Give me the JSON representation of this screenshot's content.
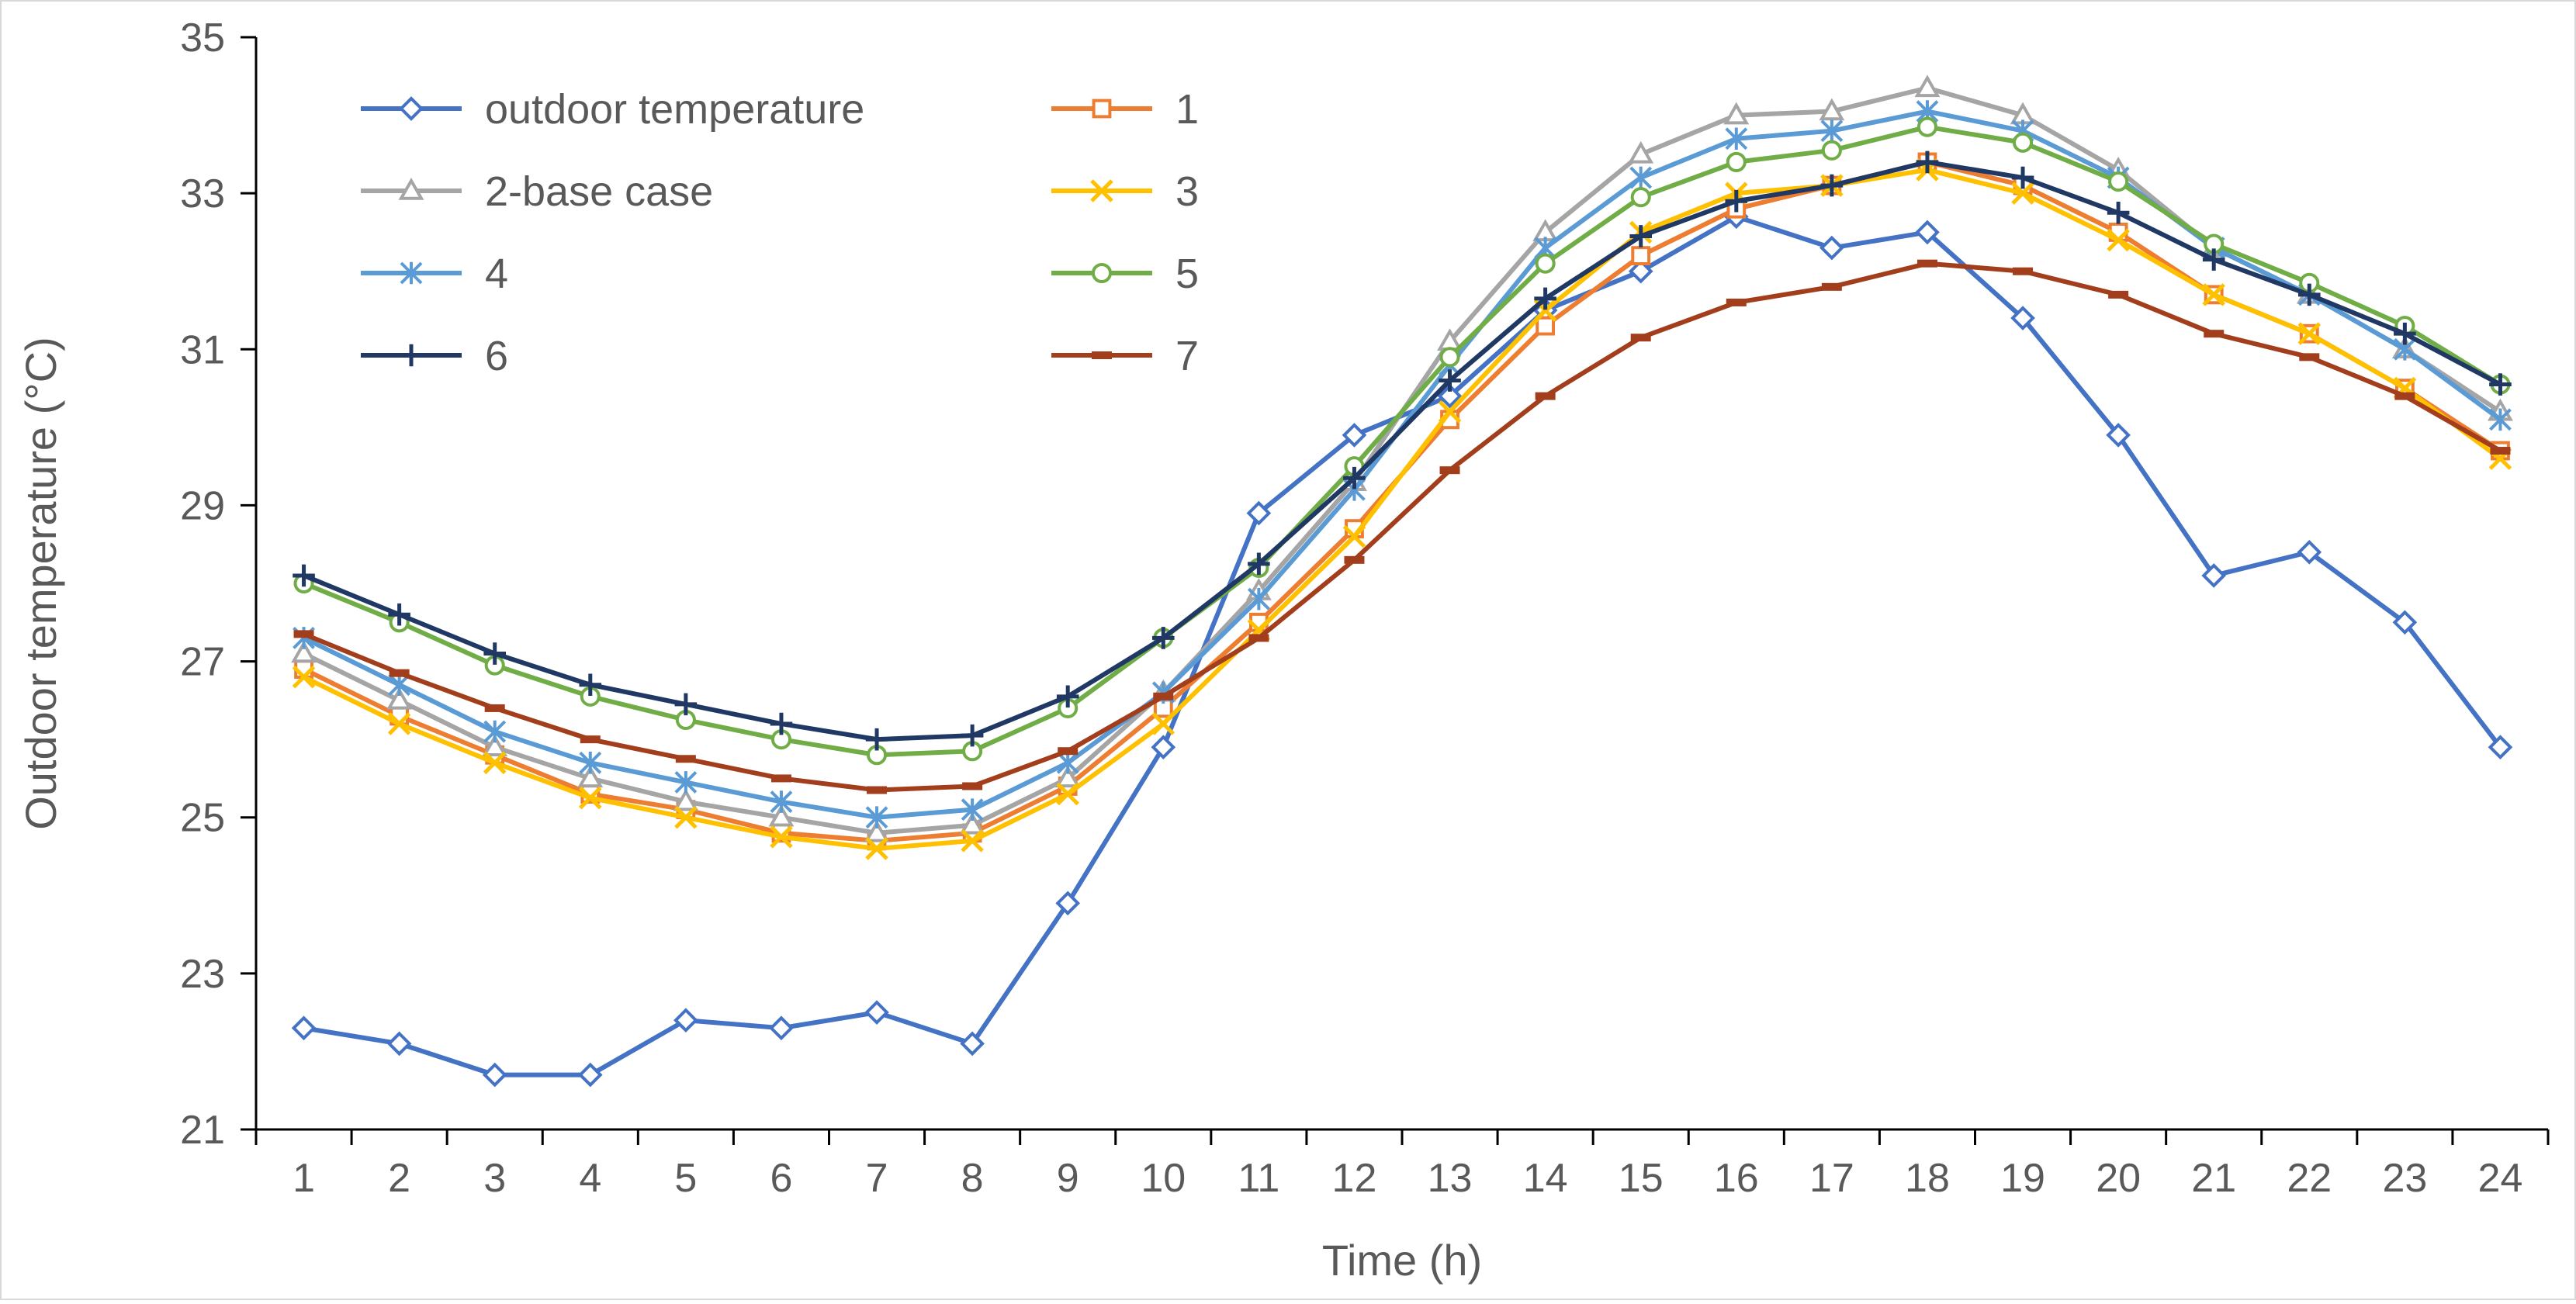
{
  "chart_data": {
    "type": "line",
    "title": "",
    "xlabel": "Time (h)",
    "ylabel": "Outdoor temperature (°C)",
    "ylim": [
      21,
      35
    ],
    "yticks": [
      21,
      23,
      25,
      27,
      29,
      31,
      33,
      35
    ],
    "x": [
      "1",
      "2",
      "3",
      "4",
      "5",
      "6",
      "7",
      "8",
      "9",
      "10",
      "11",
      "12",
      "13",
      "14",
      "15",
      "16",
      "17",
      "18",
      "19",
      "20",
      "21",
      "22",
      "23",
      "24"
    ],
    "grid": false,
    "legend_position": "top-left, inside plot, two columns",
    "series": [
      {
        "name": "outdoor temperature",
        "color": "#4472C4",
        "marker": "diamond",
        "values": [
          22.3,
          22.1,
          21.7,
          21.7,
          22.4,
          22.3,
          22.5,
          22.1,
          23.9,
          25.9,
          28.9,
          29.9,
          30.4,
          31.5,
          32.0,
          32.7,
          32.3,
          32.5,
          31.4,
          29.9,
          28.1,
          28.4,
          27.5,
          25.9
        ]
      },
      {
        "name": "1",
        "color": "#ED7D31",
        "marker": "square",
        "values": [
          26.9,
          26.3,
          25.8,
          25.3,
          25.1,
          24.8,
          24.7,
          24.8,
          25.4,
          26.4,
          27.5,
          28.7,
          30.1,
          31.3,
          32.2,
          32.8,
          33.1,
          33.4,
          33.1,
          32.5,
          31.7,
          31.2,
          30.5,
          29.7
        ]
      },
      {
        "name": "2-base case",
        "color": "#A5A5A5",
        "marker": "triangle",
        "values": [
          27.1,
          26.5,
          25.9,
          25.5,
          25.2,
          25.0,
          24.8,
          24.9,
          25.5,
          26.6,
          27.9,
          29.3,
          31.1,
          32.5,
          33.5,
          34.0,
          34.05,
          34.35,
          34.0,
          33.3,
          32.3,
          31.7,
          31.0,
          30.2
        ]
      },
      {
        "name": "3",
        "color": "#FFC000",
        "marker": "x",
        "values": [
          26.8,
          26.2,
          25.7,
          25.25,
          25.0,
          24.75,
          24.6,
          24.7,
          25.3,
          26.2,
          27.4,
          28.6,
          30.2,
          31.5,
          32.5,
          33.0,
          33.1,
          33.3,
          33.0,
          32.4,
          31.7,
          31.2,
          30.5,
          29.6
        ]
      },
      {
        "name": "4",
        "color": "#5B9BD5",
        "marker": "asterisk",
        "values": [
          27.3,
          26.7,
          26.1,
          25.7,
          25.45,
          25.2,
          25.0,
          25.1,
          25.7,
          26.6,
          27.8,
          29.2,
          30.8,
          32.3,
          33.2,
          33.7,
          33.8,
          34.05,
          33.8,
          33.2,
          32.3,
          31.7,
          31.0,
          30.1
        ]
      },
      {
        "name": "5",
        "color": "#70AD47",
        "marker": "circle",
        "values": [
          28.0,
          27.5,
          26.95,
          26.55,
          26.25,
          26.0,
          25.8,
          25.85,
          26.4,
          27.3,
          28.2,
          29.5,
          30.9,
          32.1,
          32.95,
          33.4,
          33.55,
          33.85,
          33.65,
          33.15,
          32.35,
          31.85,
          31.3,
          30.55
        ]
      },
      {
        "name": "6",
        "color": "#203864",
        "marker": "plus",
        "values": [
          28.1,
          27.6,
          27.1,
          26.7,
          26.45,
          26.2,
          26.0,
          26.05,
          26.55,
          27.3,
          28.25,
          29.35,
          30.6,
          31.65,
          32.45,
          32.9,
          33.1,
          33.4,
          33.2,
          32.75,
          32.15,
          31.7,
          31.2,
          30.55
        ]
      },
      {
        "name": "7",
        "color": "#A33E1D",
        "marker": "dash",
        "values": [
          27.35,
          26.85,
          26.4,
          26.0,
          25.75,
          25.5,
          25.35,
          25.4,
          25.85,
          26.55,
          27.3,
          28.3,
          29.45,
          30.4,
          31.15,
          31.6,
          31.8,
          32.1,
          32.0,
          31.7,
          31.2,
          30.9,
          30.4,
          29.7
        ]
      }
    ]
  }
}
